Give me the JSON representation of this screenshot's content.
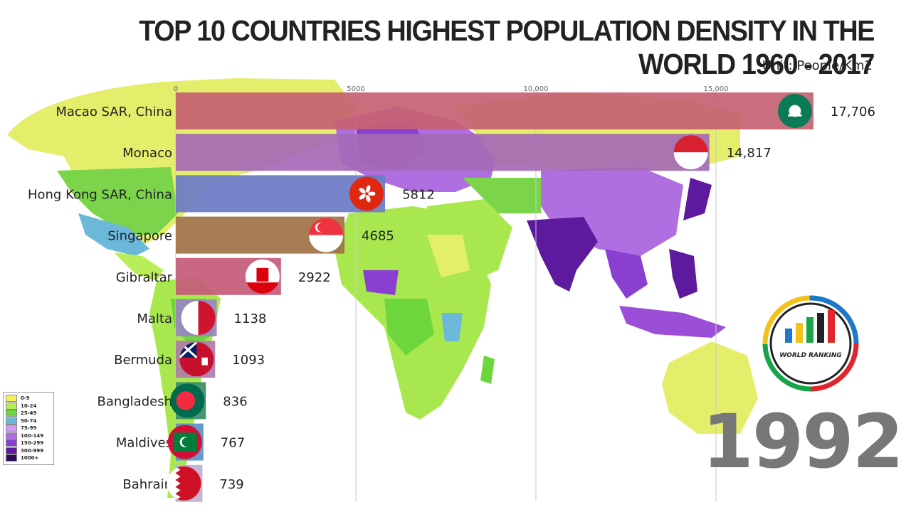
{
  "title": "TOP 10 COUNTRIES HIGHEST POPULATION DENSITY IN THE WORLD 1960 - 2017",
  "unit": "Unit: People/Km2",
  "year": "1992",
  "logo": {
    "text": "WORLD RANKING",
    "icon": "bar-chart-ring-logo"
  },
  "legend": {
    "items": [
      {
        "label": "0-9",
        "color": "#f4f15a"
      },
      {
        "label": "10-24",
        "color": "#b3ee55"
      },
      {
        "label": "25-49",
        "color": "#6dd63c"
      },
      {
        "label": "50-74",
        "color": "#6cb8d9"
      },
      {
        "label": "75-99",
        "color": "#d09af0"
      },
      {
        "label": "100-149",
        "color": "#b06fe0"
      },
      {
        "label": "150-299",
        "color": "#8b3fd0"
      },
      {
        "label": "300-999",
        "color": "#5e1a9e"
      },
      {
        "label": "1000+",
        "color": "#2e0a5a"
      }
    ]
  },
  "chart_data": {
    "type": "bar",
    "orientation": "horizontal",
    "title": "TOP 10 COUNTRIES HIGHEST POPULATION DENSITY IN THE WORLD 1960 - 2017",
    "subtitle": "Unit: People/Km2",
    "xlim": [
      0,
      17706
    ],
    "xticks": [
      {
        "value": 0,
        "label": "0"
      },
      {
        "value": 5000,
        "label": "5000"
      },
      {
        "value": 10000,
        "label": "10,000"
      },
      {
        "value": 15000,
        "label": "15,000"
      }
    ],
    "grid": true,
    "categories": [
      "Macao SAR, China",
      "Monaco",
      "Hong Kong SAR, China",
      "Singapore",
      "Gibraltar",
      "Malta",
      "Bermuda",
      "Bangladesh",
      "Maldives",
      "Bahrain"
    ],
    "values": [
      17706,
      14817,
      5812,
      4685,
      2922,
      1138,
      1093,
      836,
      767,
      739
    ],
    "value_labels": [
      "17,706",
      "14,817",
      "5812",
      "4685",
      "2922",
      "1138",
      "1093",
      "836",
      "767",
      "739"
    ],
    "colors": [
      "#c56172",
      "#a569b6",
      "#6a7bc6",
      "#a27245",
      "#c55a78",
      "#9b84c3",
      "#b07aa9",
      "#3a8c66",
      "#5a90c8",
      "#bfb0ce"
    ],
    "flags": [
      "macao-flag-icon",
      "monaco-flag-icon",
      "hong-kong-flag-icon",
      "singapore-flag-icon",
      "gibraltar-flag-icon",
      "malta-flag-icon",
      "bermuda-flag-icon",
      "bangladesh-flag-icon",
      "maldives-flag-icon",
      "bahrain-flag-icon"
    ]
  }
}
